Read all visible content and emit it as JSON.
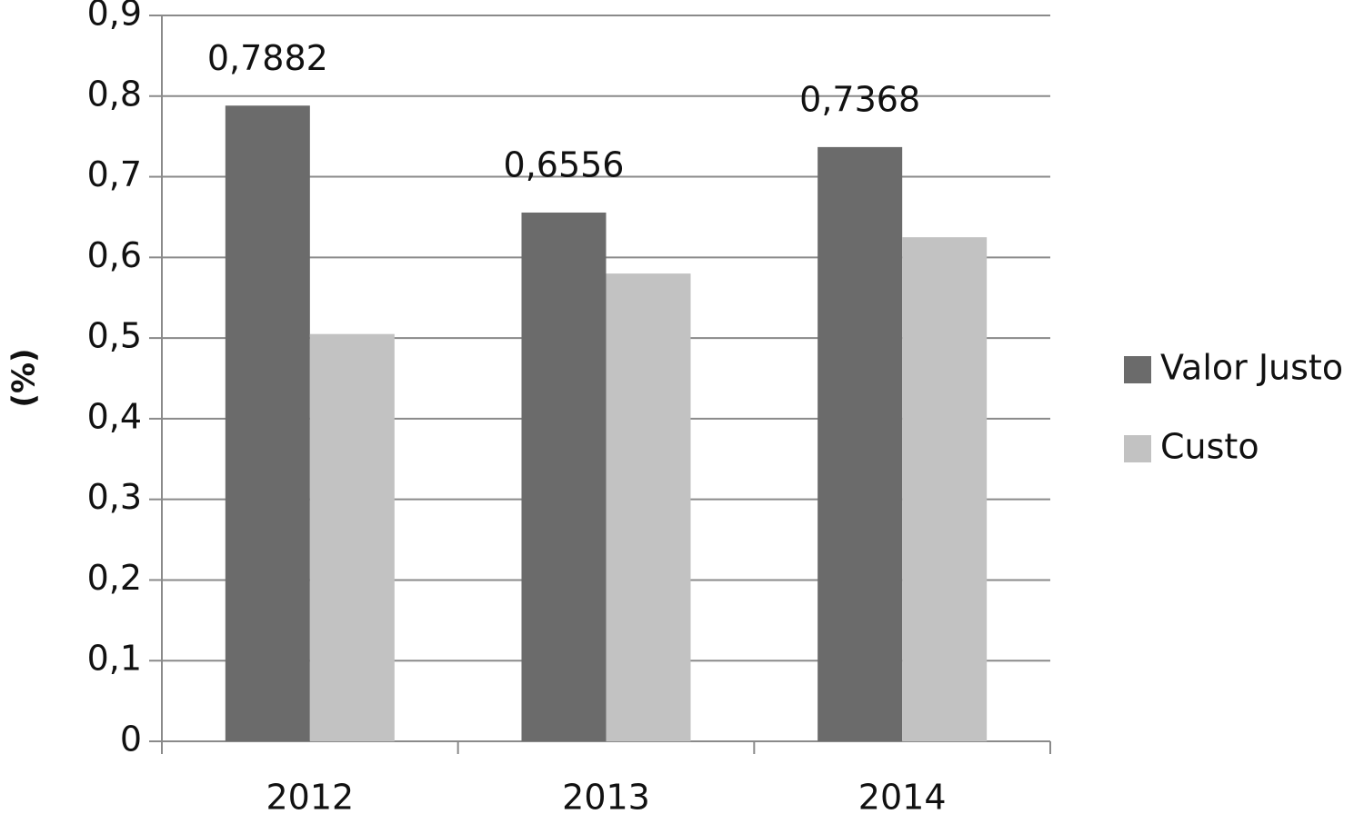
{
  "chart_data": {
    "type": "bar",
    "y_label": "(%)",
    "categories": [
      "2012",
      "2013",
      "2014"
    ],
    "series": [
      {
        "name": "Valor Justo",
        "color": "#6b6b6b",
        "values": [
          0.7882,
          0.6556,
          0.7368
        ],
        "value_labels": [
          "0,7882",
          "0,6556",
          "0,7368"
        ]
      },
      {
        "name": "Custo",
        "color": "#c2c2c2",
        "values": [
          0.505,
          0.58,
          0.625
        ]
      }
    ],
    "ylim": [
      0,
      0.9
    ],
    "yticks": [
      0,
      {
        "value": 0.1,
        "label": "0,1"
      },
      {
        "value": 0.2,
        "label": "0,2"
      },
      {
        "value": 0.3,
        "label": "0,3"
      },
      {
        "value": 0.4,
        "label": "0,4"
      },
      {
        "value": 0.5,
        "label": "0,5"
      },
      {
        "value": 0.6,
        "label": "0,6"
      },
      {
        "value": 0.7,
        "label": "0,7"
      },
      {
        "value": 0.8,
        "label": "0,8"
      },
      {
        "value": 0.9,
        "label": "0,9"
      }
    ],
    "grid": true,
    "legend": "right"
  }
}
